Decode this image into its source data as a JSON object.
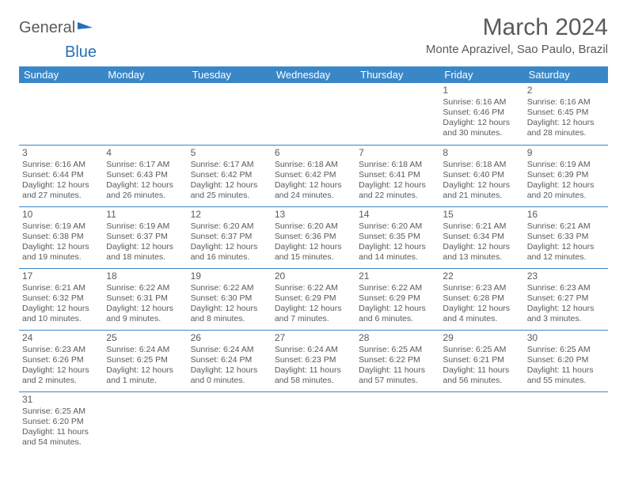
{
  "logo": {
    "general": "General",
    "blue": "Blue"
  },
  "title": "March 2024",
  "location": "Monte Aprazivel, Sao Paulo, Brazil",
  "colors": {
    "header_bg": "#3a87c8",
    "header_text": "#ffffff",
    "body_text": "#5a5a5a",
    "rule": "#3a87c8",
    "logo_blue": "#2570b8"
  },
  "weekdays": [
    "Sunday",
    "Monday",
    "Tuesday",
    "Wednesday",
    "Thursday",
    "Friday",
    "Saturday"
  ],
  "weeks": [
    [
      null,
      null,
      null,
      null,
      null,
      {
        "n": "1",
        "sr": "6:16 AM",
        "ss": "6:46 PM",
        "dl": "12 hours and 30 minutes."
      },
      {
        "n": "2",
        "sr": "6:16 AM",
        "ss": "6:45 PM",
        "dl": "12 hours and 28 minutes."
      }
    ],
    [
      {
        "n": "3",
        "sr": "6:16 AM",
        "ss": "6:44 PM",
        "dl": "12 hours and 27 minutes."
      },
      {
        "n": "4",
        "sr": "6:17 AM",
        "ss": "6:43 PM",
        "dl": "12 hours and 26 minutes."
      },
      {
        "n": "5",
        "sr": "6:17 AM",
        "ss": "6:42 PM",
        "dl": "12 hours and 25 minutes."
      },
      {
        "n": "6",
        "sr": "6:18 AM",
        "ss": "6:42 PM",
        "dl": "12 hours and 24 minutes."
      },
      {
        "n": "7",
        "sr": "6:18 AM",
        "ss": "6:41 PM",
        "dl": "12 hours and 22 minutes."
      },
      {
        "n": "8",
        "sr": "6:18 AM",
        "ss": "6:40 PM",
        "dl": "12 hours and 21 minutes."
      },
      {
        "n": "9",
        "sr": "6:19 AM",
        "ss": "6:39 PM",
        "dl": "12 hours and 20 minutes."
      }
    ],
    [
      {
        "n": "10",
        "sr": "6:19 AM",
        "ss": "6:38 PM",
        "dl": "12 hours and 19 minutes."
      },
      {
        "n": "11",
        "sr": "6:19 AM",
        "ss": "6:37 PM",
        "dl": "12 hours and 18 minutes."
      },
      {
        "n": "12",
        "sr": "6:20 AM",
        "ss": "6:37 PM",
        "dl": "12 hours and 16 minutes."
      },
      {
        "n": "13",
        "sr": "6:20 AM",
        "ss": "6:36 PM",
        "dl": "12 hours and 15 minutes."
      },
      {
        "n": "14",
        "sr": "6:20 AM",
        "ss": "6:35 PM",
        "dl": "12 hours and 14 minutes."
      },
      {
        "n": "15",
        "sr": "6:21 AM",
        "ss": "6:34 PM",
        "dl": "12 hours and 13 minutes."
      },
      {
        "n": "16",
        "sr": "6:21 AM",
        "ss": "6:33 PM",
        "dl": "12 hours and 12 minutes."
      }
    ],
    [
      {
        "n": "17",
        "sr": "6:21 AM",
        "ss": "6:32 PM",
        "dl": "12 hours and 10 minutes."
      },
      {
        "n": "18",
        "sr": "6:22 AM",
        "ss": "6:31 PM",
        "dl": "12 hours and 9 minutes."
      },
      {
        "n": "19",
        "sr": "6:22 AM",
        "ss": "6:30 PM",
        "dl": "12 hours and 8 minutes."
      },
      {
        "n": "20",
        "sr": "6:22 AM",
        "ss": "6:29 PM",
        "dl": "12 hours and 7 minutes."
      },
      {
        "n": "21",
        "sr": "6:22 AM",
        "ss": "6:29 PM",
        "dl": "12 hours and 6 minutes."
      },
      {
        "n": "22",
        "sr": "6:23 AM",
        "ss": "6:28 PM",
        "dl": "12 hours and 4 minutes."
      },
      {
        "n": "23",
        "sr": "6:23 AM",
        "ss": "6:27 PM",
        "dl": "12 hours and 3 minutes."
      }
    ],
    [
      {
        "n": "24",
        "sr": "6:23 AM",
        "ss": "6:26 PM",
        "dl": "12 hours and 2 minutes."
      },
      {
        "n": "25",
        "sr": "6:24 AM",
        "ss": "6:25 PM",
        "dl": "12 hours and 1 minute."
      },
      {
        "n": "26",
        "sr": "6:24 AM",
        "ss": "6:24 PM",
        "dl": "12 hours and 0 minutes."
      },
      {
        "n": "27",
        "sr": "6:24 AM",
        "ss": "6:23 PM",
        "dl": "11 hours and 58 minutes."
      },
      {
        "n": "28",
        "sr": "6:25 AM",
        "ss": "6:22 PM",
        "dl": "11 hours and 57 minutes."
      },
      {
        "n": "29",
        "sr": "6:25 AM",
        "ss": "6:21 PM",
        "dl": "11 hours and 56 minutes."
      },
      {
        "n": "30",
        "sr": "6:25 AM",
        "ss": "6:20 PM",
        "dl": "11 hours and 55 minutes."
      }
    ],
    [
      {
        "n": "31",
        "sr": "6:25 AM",
        "ss": "6:20 PM",
        "dl": "11 hours and 54 minutes."
      },
      null,
      null,
      null,
      null,
      null,
      null
    ]
  ],
  "labels": {
    "sunrise": "Sunrise:",
    "sunset": "Sunset:",
    "daylight": "Daylight:"
  }
}
